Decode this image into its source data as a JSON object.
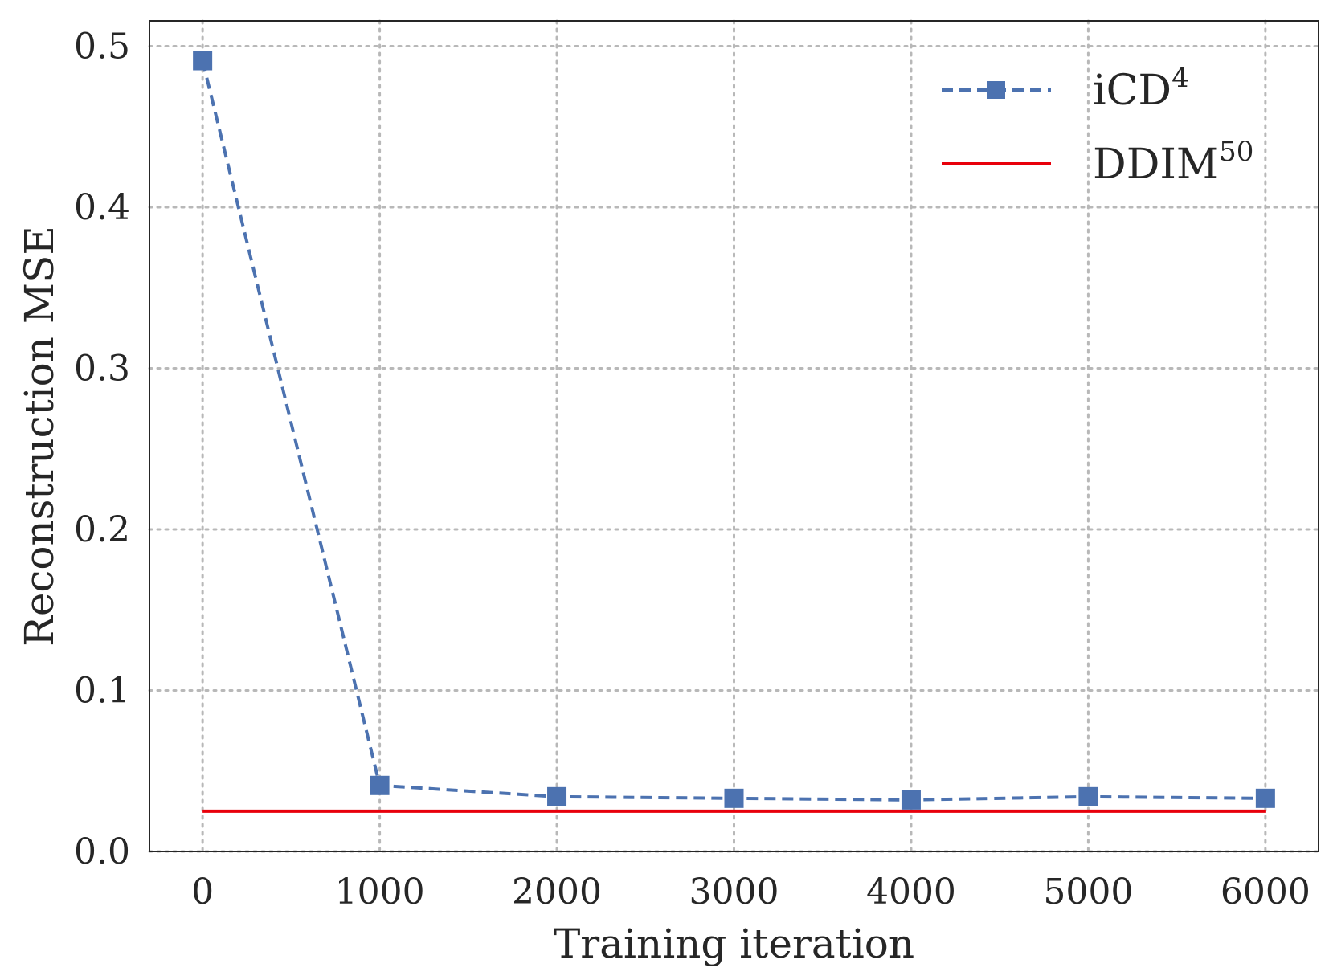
{
  "chart_data": {
    "type": "line",
    "title": "",
    "xlabel": "Training iteration",
    "ylabel": "Reconstruction MSE",
    "xlim": [
      -300,
      6300
    ],
    "ylim": [
      0.0,
      0.5157
    ],
    "xticks": [
      0,
      1000,
      2000,
      3000,
      4000,
      5000,
      6000
    ],
    "xtick_labels": [
      "0",
      "1000",
      "2000",
      "3000",
      "4000",
      "5000",
      "6000"
    ],
    "yticks": [
      0.0,
      0.1,
      0.2,
      0.3,
      0.4,
      0.5
    ],
    "ytick_labels": [
      "0.0",
      "0.1",
      "0.2",
      "0.3",
      "0.4",
      "0.5"
    ],
    "grid": true,
    "legend_position": "top-right",
    "series": [
      {
        "name": "iCD",
        "superscript": "4",
        "style": "dashed",
        "marker": "square",
        "color": "#4c72b0",
        "x": [
          0,
          1000,
          2000,
          3000,
          4000,
          5000,
          6000
        ],
        "y": [
          0.491,
          0.041,
          0.034,
          0.033,
          0.032,
          0.034,
          0.033
        ]
      },
      {
        "name": "DDIM",
        "superscript": "50",
        "style": "solid",
        "marker": "none",
        "color": "#e8000b",
        "x": [
          0,
          6000
        ],
        "y": [
          0.025,
          0.025
        ]
      }
    ]
  }
}
